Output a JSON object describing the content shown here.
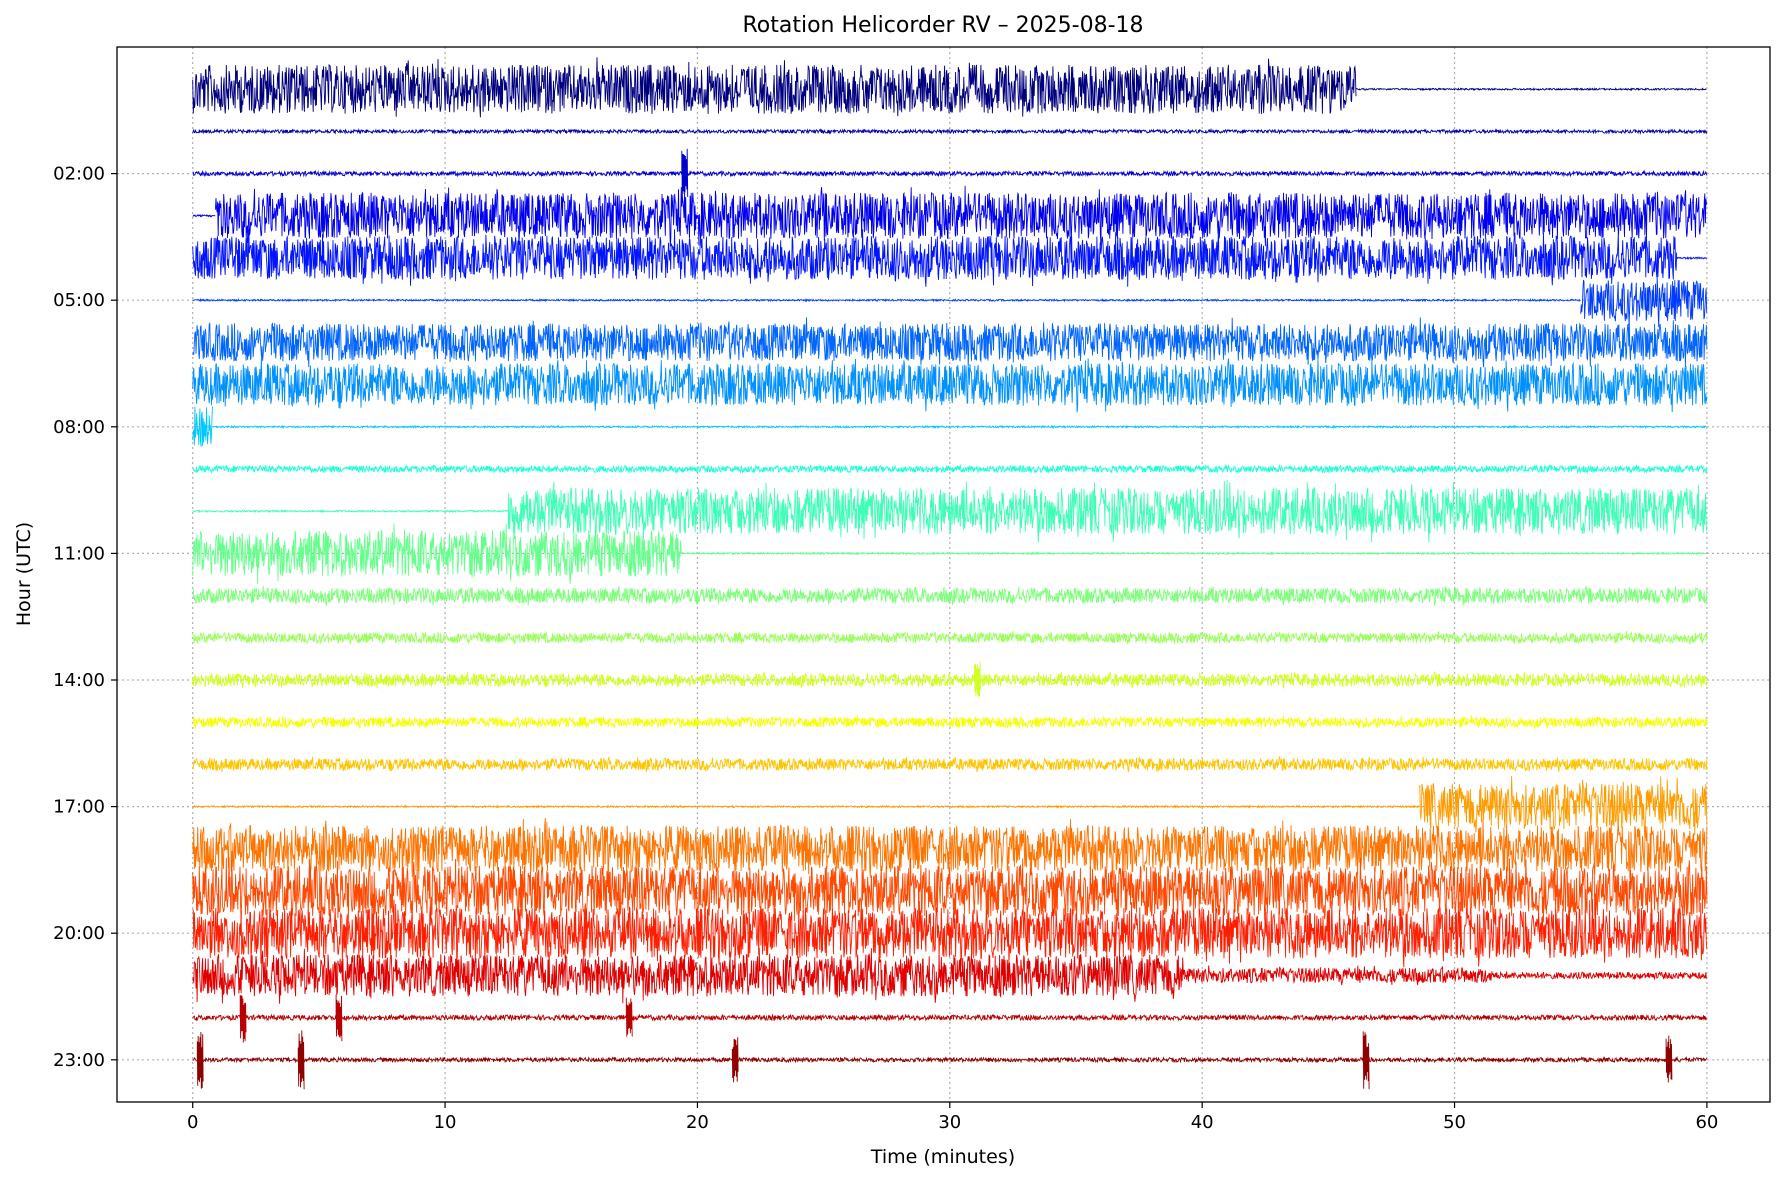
{
  "chart_data": {
    "type": "line",
    "title": "Rotation Helicorder RV – 2025-08-18",
    "xlabel": "Time (minutes)",
    "ylabel": "Hour (UTC)",
    "xlim": [
      -3,
      62.5
    ],
    "ylim_hours_inverted": [
      -1.0,
      24.0
    ],
    "x_ticks": [
      0,
      10,
      20,
      30,
      40,
      50,
      60
    ],
    "x_tick_labels": [
      "0",
      "10",
      "20",
      "30",
      "40",
      "50",
      "60"
    ],
    "y_ticks": [
      2,
      5,
      8,
      11,
      14,
      17,
      20,
      23
    ],
    "y_tick_labels": [
      "02:00",
      "05:00",
      "08:00",
      "11:00",
      "14:00",
      "17:00",
      "20:00",
      "23:00"
    ],
    "grid": true,
    "legend": "none",
    "series": [
      {
        "hour": 0,
        "color": "#00007f",
        "segments": [
          {
            "from": 0,
            "to": 46.1,
            "amp": 0.58
          },
          {
            "from": 46.1,
            "to": 60,
            "amp": 0.02
          }
        ]
      },
      {
        "hour": 1,
        "color": "#0000a8",
        "segments": [
          {
            "from": 0,
            "to": 60,
            "amp": 0.04
          }
        ]
      },
      {
        "hour": 2,
        "color": "#0000d0",
        "segments": [
          {
            "from": 0,
            "to": 60,
            "amp": 0.05
          }
        ],
        "events": [
          {
            "at": 19.5,
            "amp": 0.6
          }
        ]
      },
      {
        "hour": 3,
        "color": "#0000f1",
        "segments": [
          {
            "from": 0,
            "to": 0.9,
            "amp": 0.02
          },
          {
            "from": 0.9,
            "to": 60,
            "amp": 0.55
          }
        ]
      },
      {
        "hour": 4,
        "color": "#0014ff",
        "segments": [
          {
            "from": 0,
            "to": 58.8,
            "amp": 0.52
          },
          {
            "from": 58.8,
            "to": 60,
            "amp": 0.02
          }
        ]
      },
      {
        "hour": 5,
        "color": "#003cff",
        "segments": [
          {
            "from": 0,
            "to": 55.0,
            "amp": 0.02
          },
          {
            "from": 55.0,
            "to": 60,
            "amp": 0.5
          }
        ]
      },
      {
        "hour": 6,
        "color": "#0064ff",
        "segments": [
          {
            "from": 0,
            "to": 60,
            "amp": 0.45
          }
        ]
      },
      {
        "hour": 7,
        "color": "#0090ff",
        "segments": [
          {
            "from": 0,
            "to": 60,
            "amp": 0.5
          }
        ]
      },
      {
        "hour": 8,
        "color": "#00c8ff",
        "segments": [
          {
            "from": 0,
            "to": 0.8,
            "amp": 0.5
          },
          {
            "from": 0.8,
            "to": 60,
            "amp": 0.02
          }
        ]
      },
      {
        "hour": 9,
        "color": "#1affd8",
        "segments": [
          {
            "from": 0,
            "to": 60,
            "amp": 0.08
          }
        ]
      },
      {
        "hour": 10,
        "color": "#3effb6",
        "segments": [
          {
            "from": 0,
            "to": 12.5,
            "amp": 0.02
          },
          {
            "from": 12.5,
            "to": 60,
            "amp": 0.55
          }
        ]
      },
      {
        "hour": 11,
        "color": "#66ff8c",
        "segments": [
          {
            "from": 0,
            "to": 19.4,
            "amp": 0.55
          },
          {
            "from": 19.4,
            "to": 60,
            "amp": 0.02
          }
        ]
      },
      {
        "hour": 12,
        "color": "#7cff79",
        "segments": [
          {
            "from": 0,
            "to": 60,
            "amp": 0.18
          }
        ]
      },
      {
        "hour": 13,
        "color": "#9aff5a",
        "segments": [
          {
            "from": 0,
            "to": 60,
            "amp": 0.12
          }
        ]
      },
      {
        "hour": 14,
        "color": "#d0ff26",
        "segments": [
          {
            "from": 0,
            "to": 60,
            "amp": 0.15
          }
        ],
        "events": [
          {
            "at": 31.1,
            "amp": 0.5
          }
        ]
      },
      {
        "hour": 15,
        "color": "#f5ff00",
        "segments": [
          {
            "from": 0,
            "to": 60,
            "amp": 0.12
          }
        ]
      },
      {
        "hour": 16,
        "color": "#ffc400",
        "segments": [
          {
            "from": 0,
            "to": 60,
            "amp": 0.14
          }
        ]
      },
      {
        "hour": 17,
        "color": "#ff9c00",
        "segments": [
          {
            "from": 0,
            "to": 48.6,
            "amp": 0.02
          },
          {
            "from": 48.6,
            "to": 60,
            "amp": 0.55
          }
        ]
      },
      {
        "hour": 18,
        "color": "#ff7300",
        "segments": [
          {
            "from": 0,
            "to": 60,
            "amp": 0.55
          }
        ]
      },
      {
        "hour": 19,
        "color": "#ff4800",
        "segments": [
          {
            "from": 0,
            "to": 60,
            "amp": 0.6
          }
        ]
      },
      {
        "hour": 20,
        "color": "#ff1e00",
        "segments": [
          {
            "from": 0,
            "to": 60,
            "amp": 0.6
          }
        ]
      },
      {
        "hour": 21,
        "color": "#e00000",
        "segments": [
          {
            "from": 0,
            "to": 39.3,
            "amp": 0.5
          },
          {
            "from": 39.3,
            "to": 51.5,
            "amp": 0.18
          },
          {
            "from": 51.5,
            "to": 60,
            "amp": 0.08
          }
        ]
      },
      {
        "hour": 22,
        "color": "#b80000",
        "segments": [
          {
            "from": 0,
            "to": 60,
            "amp": 0.06
          }
        ],
        "events": [
          {
            "at": 2.0,
            "amp": 0.6
          },
          {
            "at": 5.8,
            "amp": 0.6
          },
          {
            "at": 17.3,
            "amp": 0.5
          }
        ]
      },
      {
        "hour": 23,
        "color": "#8f0000",
        "segments": [
          {
            "from": 0,
            "to": 60,
            "amp": 0.05
          }
        ],
        "events": [
          {
            "at": 0.3,
            "amp": 0.7
          },
          {
            "at": 4.3,
            "amp": 0.7
          },
          {
            "at": 21.5,
            "amp": 0.6
          },
          {
            "at": 46.5,
            "amp": 0.7
          },
          {
            "at": 58.5,
            "amp": 0.6
          }
        ]
      }
    ]
  }
}
